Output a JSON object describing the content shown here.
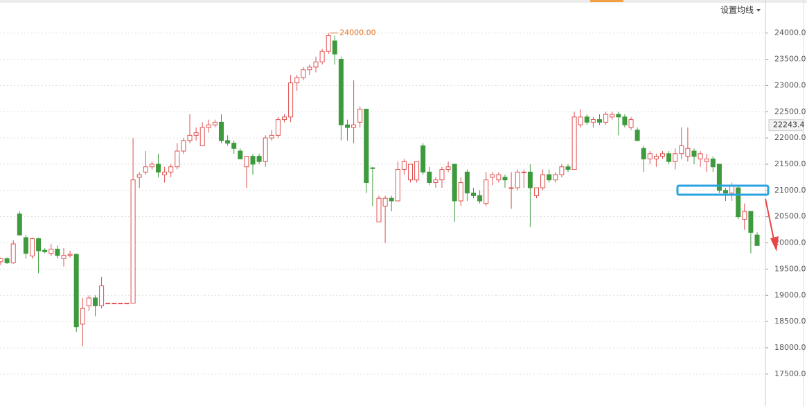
{
  "toolbar": {
    "ma_button": "设置均线"
  },
  "chart_data": {
    "type": "candlestick",
    "up_color": "#e05050",
    "down_color": "#3d9a3d",
    "grid": true,
    "ylim": [
      16890,
      24630
    ],
    "yticks": [
      {
        "value": 17500,
        "label": "17500.0"
      },
      {
        "value": 18000,
        "label": "18000.0"
      },
      {
        "value": 18500,
        "label": "18500.0"
      },
      {
        "value": 19000,
        "label": "19000.0"
      },
      {
        "value": 19500,
        "label": "19500.0"
      },
      {
        "value": 20000,
        "label": "20000.0"
      },
      {
        "value": 20500,
        "label": "20500.0"
      },
      {
        "value": 21000,
        "label": "21000.0"
      },
      {
        "value": 21500,
        "label": "21500.0"
      },
      {
        "value": 22000,
        "label": "22000.0"
      },
      {
        "value": 22500,
        "label": "22500.0"
      },
      {
        "value": 23000,
        "label": "23000.0"
      },
      {
        "value": 23500,
        "label": "23500.0"
      },
      {
        "value": 24000,
        "label": "24000.0"
      }
    ],
    "max_label": {
      "value": 24000,
      "label": "24000.00"
    },
    "last_price": 22243.4,
    "candles": [
      [
        19640,
        19720,
        19580,
        19700
      ],
      [
        19700,
        19720,
        19600,
        19620
      ],
      [
        19620,
        20050,
        19600,
        19980
      ],
      [
        20550,
        20600,
        20150,
        20150
      ],
      [
        20100,
        20150,
        19700,
        19800
      ],
      [
        19750,
        20100,
        19700,
        20080
      ],
      [
        20080,
        20100,
        19420,
        19850
      ],
      [
        19860,
        19900,
        19800,
        19830
      ],
      [
        19800,
        19980,
        19750,
        19880
      ],
      [
        19880,
        19950,
        19700,
        19760
      ],
      [
        19700,
        19900,
        19550,
        19760
      ],
      [
        19760,
        19850,
        19720,
        19780
      ],
      [
        19780,
        19800,
        18300,
        18400
      ],
      [
        18450,
        18950,
        18030,
        18750
      ],
      [
        18800,
        19000,
        18700,
        18950
      ],
      [
        18950,
        19000,
        18600,
        18800
      ],
      [
        18800,
        19350,
        18750,
        19180
      ],
      [
        18850,
        18850,
        18850,
        18850
      ],
      [
        18850,
        18850,
        18850,
        18850
      ],
      [
        18850,
        18850,
        18850,
        18850
      ],
      [
        18850,
        18850,
        18850,
        18850
      ],
      [
        18850,
        22000,
        18850,
        21200
      ],
      [
        21250,
        21350,
        21050,
        21300
      ],
      [
        21350,
        21750,
        21300,
        21450
      ],
      [
        21450,
        21550,
        21400,
        21500
      ],
      [
        21500,
        21700,
        21250,
        21350
      ],
      [
        21300,
        21450,
        21150,
        21350
      ],
      [
        21350,
        21500,
        21250,
        21450
      ],
      [
        21450,
        21900,
        21400,
        21750
      ],
      [
        21750,
        22000,
        21700,
        21950
      ],
      [
        21950,
        22450,
        21900,
        22050
      ],
      [
        22050,
        22200,
        21950,
        22100
      ],
      [
        21850,
        22300,
        21850,
        22200
      ],
      [
        22200,
        22350,
        22100,
        22250
      ],
      [
        22250,
        22350,
        22200,
        22300
      ],
      [
        22300,
        22450,
        21900,
        21950
      ],
      [
        21950,
        22050,
        21850,
        21900
      ],
      [
        21900,
        21950,
        21700,
        21800
      ],
      [
        21750,
        21800,
        21600,
        21600
      ],
      [
        21450,
        21650,
        21050,
        21650
      ],
      [
        21650,
        21700,
        21300,
        21500
      ],
      [
        21650,
        21700,
        21500,
        21550
      ],
      [
        21550,
        22050,
        21450,
        22000
      ],
      [
        22000,
        22150,
        21950,
        22050
      ],
      [
        22050,
        22400,
        22000,
        22350
      ],
      [
        22350,
        22450,
        22300,
        22400
      ],
      [
        22400,
        23200,
        22300,
        23050
      ],
      [
        23050,
        23200,
        22900,
        23150
      ],
      [
        23150,
        23350,
        23100,
        23300
      ],
      [
        23300,
        23400,
        23200,
        23350
      ],
      [
        23350,
        23550,
        23250,
        23450
      ],
      [
        23450,
        23700,
        23400,
        23650
      ],
      [
        23650,
        24000,
        23600,
        23950
      ],
      [
        23850,
        23950,
        23400,
        23600
      ],
      [
        23500,
        23550,
        21950,
        22250
      ],
      [
        22250,
        22350,
        21950,
        22200
      ],
      [
        22200,
        23100,
        21900,
        22250
      ],
      [
        22300,
        22600,
        22200,
        22550
      ],
      [
        22550,
        22550,
        20950,
        21150
      ],
      [
        21430,
        21450,
        20700,
        21420
      ],
      [
        20400,
        20900,
        20400,
        20850
      ],
      [
        20700,
        20900,
        20000,
        20850
      ],
      [
        20850,
        20900,
        20600,
        20800
      ],
      [
        20800,
        21550,
        20800,
        21400
      ],
      [
        21400,
        21600,
        21300,
        21550
      ],
      [
        21200,
        21500,
        21150,
        21500
      ],
      [
        21200,
        21550,
        21150,
        21550
      ],
      [
        21850,
        21900,
        21300,
        21350
      ],
      [
        21350,
        21450,
        21100,
        21150
      ],
      [
        21150,
        21250,
        21050,
        21200
      ],
      [
        21200,
        21450,
        21050,
        21400
      ],
      [
        21400,
        21550,
        21350,
        21450
      ],
      [
        21500,
        21500,
        20400,
        20800
      ],
      [
        20800,
        21250,
        20700,
        21150
      ],
      [
        21350,
        21400,
        20800,
        20950
      ],
      [
        20950,
        21050,
        20850,
        20900
      ],
      [
        20900,
        21000,
        20750,
        20800
      ],
      [
        20750,
        21350,
        20700,
        21200
      ],
      [
        21250,
        21350,
        21100,
        21300
      ],
      [
        21200,
        21350,
        21150,
        21300
      ],
      [
        21250,
        21300,
        21050,
        21200
      ],
      [
        21050,
        21350,
        20650,
        21050
      ],
      [
        21050,
        21400,
        21000,
        21350
      ],
      [
        21350,
        21400,
        21050,
        21350
      ],
      [
        21350,
        21500,
        20300,
        21050
      ],
      [
        20900,
        21050,
        20850,
        21050
      ],
      [
        21050,
        21400,
        21000,
        21300
      ],
      [
        21300,
        21400,
        21150,
        21200
      ],
      [
        21200,
        21350,
        21150,
        21300
      ],
      [
        21300,
        21500,
        21250,
        21450
      ],
      [
        21450,
        21500,
        21350,
        21400
      ],
      [
        21400,
        22500,
        21400,
        22400
      ],
      [
        22250,
        22550,
        22200,
        22400
      ],
      [
        22400,
        22450,
        22250,
        22300
      ],
      [
        22300,
        22400,
        22200,
        22350
      ],
      [
        22350,
        22450,
        22250,
        22300
      ],
      [
        22300,
        22500,
        22250,
        22450
      ],
      [
        22400,
        22500,
        22350,
        22450
      ],
      [
        22450,
        22500,
        22050,
        22400
      ],
      [
        22400,
        22450,
        22200,
        22250
      ],
      [
        22200,
        22400,
        22150,
        22350
      ],
      [
        22150,
        22200,
        21950,
        21950
      ],
      [
        21800,
        21850,
        21350,
        21600
      ],
      [
        21600,
        21750,
        21500,
        21700
      ],
      [
        21600,
        21700,
        21450,
        21650
      ],
      [
        21650,
        21750,
        21600,
        21700
      ],
      [
        21700,
        21750,
        21500,
        21550
      ],
      [
        21550,
        21800,
        21400,
        21700
      ],
      [
        21700,
        22200,
        21600,
        21850
      ],
      [
        21650,
        22200,
        21550,
        21800
      ],
      [
        21750,
        21800,
        21500,
        21650
      ],
      [
        21600,
        21750,
        21450,
        21700
      ],
      [
        21550,
        21700,
        21350,
        21600
      ],
      [
        21600,
        21650,
        21350,
        21450
      ],
      [
        21500,
        21500,
        20950,
        21000
      ],
      [
        21000,
        21050,
        20800,
        20950
      ],
      [
        20950,
        21150,
        20800,
        21100
      ],
      [
        21050,
        21100,
        20450,
        20500
      ],
      [
        20450,
        20750,
        20250,
        20600
      ],
      [
        20600,
        20600,
        19800,
        20200
      ],
      [
        20150,
        20200,
        19950,
        19950
      ]
    ]
  }
}
